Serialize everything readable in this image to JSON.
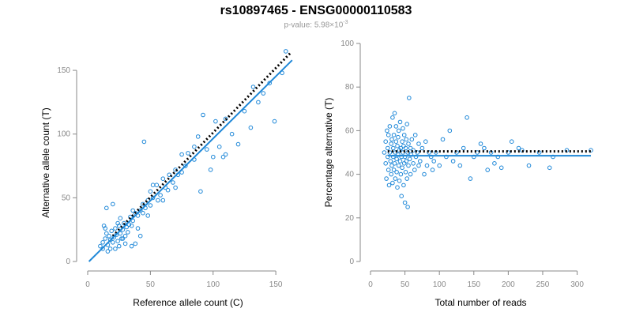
{
  "title": "rs10897465 - ENSG00000110583",
  "subtitle": {
    "prefix": "p-value: 5.98×10",
    "exponent": "-3"
  },
  "colors": {
    "points": "#1f88d8",
    "fit_line": "#1f88d8",
    "reference_line": "#000000",
    "axis": "#888888"
  },
  "chart_data": [
    {
      "type": "scatter",
      "id": "left",
      "xlabel": "Reference allele count (C)",
      "ylabel": "Alternative allele count (T)",
      "xlim": [
        0,
        160
      ],
      "ylim": [
        0,
        155
      ],
      "xticks": [
        0,
        50,
        100,
        150
      ],
      "yticks": [
        0,
        50,
        100,
        150
      ],
      "lines": [
        {
          "name": "",
          "style": "dotted",
          "color": "#000000",
          "x": [
            20,
            162
          ],
          "y": [
            20,
            164
          ]
        },
        {
          "name": "",
          "style": "solid",
          "color": "#1f88d8",
          "x": [
            1,
            163
          ],
          "y": [
            0,
            158
          ]
        }
      ],
      "points": [
        [
          10,
          12
        ],
        [
          12,
          15
        ],
        [
          14,
          18
        ],
        [
          15,
          22
        ],
        [
          16,
          13
        ],
        [
          17,
          20
        ],
        [
          18,
          17
        ],
        [
          19,
          24
        ],
        [
          20,
          15
        ],
        [
          21,
          19
        ],
        [
          22,
          26
        ],
        [
          23,
          21
        ],
        [
          24,
          16
        ],
        [
          25,
          28
        ],
        [
          26,
          22
        ],
        [
          27,
          18
        ],
        [
          28,
          25
        ],
        [
          29,
          30
        ],
        [
          30,
          20
        ],
        [
          31,
          27
        ],
        [
          32,
          23
        ],
        [
          33,
          29
        ],
        [
          34,
          35
        ],
        [
          35,
          28
        ],
        [
          36,
          32
        ],
        [
          38,
          38
        ],
        [
          40,
          36
        ],
        [
          42,
          40
        ],
        [
          44,
          45
        ],
        [
          46,
          42
        ],
        [
          48,
          48
        ],
        [
          50,
          55
        ],
        [
          52,
          50
        ],
        [
          55,
          60
        ],
        [
          58,
          52
        ],
        [
          60,
          65
        ],
        [
          62,
          58
        ],
        [
          65,
          68
        ],
        [
          68,
          62
        ],
        [
          70,
          72
        ],
        [
          72,
          68
        ],
        [
          75,
          70
        ],
        [
          78,
          75
        ],
        [
          80,
          85
        ],
        [
          85,
          80
        ],
        [
          88,
          98
        ],
        [
          90,
          55
        ],
        [
          92,
          115
        ],
        [
          95,
          88
        ],
        [
          98,
          72
        ],
        [
          100,
          82
        ],
        [
          102,
          110
        ],
        [
          105,
          90
        ],
        [
          108,
          82
        ],
        [
          110,
          112
        ],
        [
          115,
          100
        ],
        [
          120,
          92
        ],
        [
          125,
          118
        ],
        [
          130,
          105
        ],
        [
          132,
          137
        ],
        [
          136,
          125
        ],
        [
          140,
          132
        ],
        [
          145,
          140
        ],
        [
          149,
          110
        ],
        [
          155,
          148
        ],
        [
          158,
          165
        ],
        [
          45,
          94
        ],
        [
          52,
          60
        ],
        [
          60,
          48
        ],
        [
          38,
          14
        ],
        [
          13,
          28
        ],
        [
          15,
          42
        ],
        [
          20,
          45
        ],
        [
          22,
          10
        ],
        [
          25,
          12
        ],
        [
          18,
          10
        ],
        [
          30,
          14
        ],
        [
          35,
          12
        ],
        [
          12,
          10
        ],
        [
          16,
          8
        ],
        [
          28,
          18
        ],
        [
          14,
          26
        ],
        [
          26,
          34
        ],
        [
          24,
          30
        ],
        [
          40,
          26
        ],
        [
          42,
          20
        ],
        [
          36,
          40
        ],
        [
          44,
          38
        ],
        [
          50,
          44
        ],
        [
          48,
          36
        ],
        [
          56,
          48
        ],
        [
          64,
          56
        ],
        [
          70,
          58
        ],
        [
          75,
          84
        ],
        [
          85,
          90
        ],
        [
          110,
          84
        ]
      ]
    },
    {
      "type": "scatter",
      "id": "right",
      "xlabel": "Total number of reads",
      "ylabel": "Percentage alternative (T)",
      "xlim": [
        0,
        320
      ],
      "ylim": [
        0,
        100
      ],
      "xticks": [
        0,
        50,
        100,
        150,
        200,
        250,
        300
      ],
      "yticks": [
        0,
        20,
        40,
        60,
        80,
        100
      ],
      "lines": [
        {
          "name": "",
          "style": "dotted",
          "color": "#000000",
          "x": [
            25,
            320
          ],
          "y": [
            50.5,
            50.5
          ]
        },
        {
          "name": "",
          "style": "solid",
          "color": "#1f88d8",
          "x": [
            25,
            320
          ],
          "y": [
            48.5,
            48.5
          ]
        }
      ],
      "points": [
        [
          20,
          50
        ],
        [
          22,
          45
        ],
        [
          22,
          55
        ],
        [
          23,
          38
        ],
        [
          24,
          60
        ],
        [
          25,
          48
        ],
        [
          25,
          52
        ],
        [
          26,
          42
        ],
        [
          26,
          58
        ],
        [
          27,
          35
        ],
        [
          28,
          50
        ],
        [
          28,
          62
        ],
        [
          29,
          46
        ],
        [
          30,
          40
        ],
        [
          30,
          54
        ],
        [
          31,
          56
        ],
        [
          31,
          44
        ],
        [
          32,
          66
        ],
        [
          32,
          36
        ],
        [
          33,
          48
        ],
        [
          33,
          52
        ],
        [
          34,
          58
        ],
        [
          34,
          42
        ],
        [
          35,
          45
        ],
        [
          35,
          68
        ],
        [
          36,
          50
        ],
        [
          36,
          38
        ],
        [
          37,
          55
        ],
        [
          37,
          62
        ],
        [
          38,
          47
        ],
        [
          38,
          41
        ],
        [
          39,
          53
        ],
        [
          39,
          34
        ],
        [
          40,
          49
        ],
        [
          40,
          57
        ],
        [
          41,
          44
        ],
        [
          41,
          60
        ],
        [
          42,
          51
        ],
        [
          42,
          37
        ],
        [
          43,
          46
        ],
        [
          43,
          64
        ],
        [
          44,
          52
        ],
        [
          44,
          40
        ],
        [
          45,
          48
        ],
        [
          45,
          30
        ],
        [
          46,
          55
        ],
        [
          46,
          43
        ],
        [
          47,
          61
        ],
        [
          47,
          50
        ],
        [
          48,
          35
        ],
        [
          48,
          53
        ],
        [
          49,
          45
        ],
        [
          49,
          58
        ],
        [
          50,
          48
        ],
        [
          50,
          27
        ],
        [
          51,
          52
        ],
        [
          51,
          41
        ],
        [
          52,
          56
        ],
        [
          52,
          46
        ],
        [
          53,
          38
        ],
        [
          53,
          63
        ],
        [
          54,
          50
        ],
        [
          54,
          25
        ],
        [
          55,
          44
        ],
        [
          55,
          54
        ],
        [
          56,
          75
        ],
        [
          57,
          47
        ],
        [
          58,
          52
        ],
        [
          58,
          40
        ],
        [
          59,
          49
        ],
        [
          60,
          56
        ],
        [
          62,
          45
        ],
        [
          62,
          51
        ],
        [
          64,
          42
        ],
        [
          65,
          58
        ],
        [
          66,
          48
        ],
        [
          68,
          50
        ],
        [
          70,
          44
        ],
        [
          70,
          54
        ],
        [
          72,
          46
        ],
        [
          75,
          52
        ],
        [
          78,
          40
        ],
        [
          80,
          55
        ],
        [
          82,
          44
        ],
        [
          85,
          50
        ],
        [
          88,
          48
        ],
        [
          90,
          42
        ],
        [
          92,
          46
        ],
        [
          95,
          50
        ],
        [
          100,
          44
        ],
        [
          105,
          56
        ],
        [
          110,
          48
        ],
        [
          115,
          60
        ],
        [
          120,
          46
        ],
        [
          125,
          50
        ],
        [
          130,
          44
        ],
        [
          135,
          52
        ],
        [
          140,
          66
        ],
        [
          145,
          38
        ],
        [
          150,
          48
        ],
        [
          155,
          50
        ],
        [
          160,
          54
        ],
        [
          165,
          52
        ],
        [
          170,
          42
        ],
        [
          175,
          50
        ],
        [
          180,
          45
        ],
        [
          185,
          48
        ],
        [
          190,
          43
        ],
        [
          200,
          50
        ],
        [
          205,
          55
        ],
        [
          215,
          52
        ],
        [
          220,
          51
        ],
        [
          230,
          44
        ],
        [
          245,
          50
        ],
        [
          260,
          43
        ],
        [
          265,
          48
        ],
        [
          285,
          51
        ],
        [
          320,
          51
        ]
      ]
    }
  ]
}
